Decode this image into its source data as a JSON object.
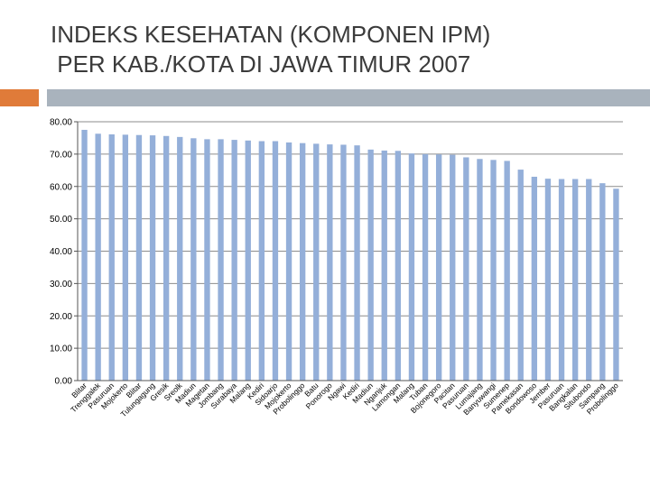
{
  "title": "INDEKS KESEHATAN (KOMPONEN IPM)\n PER KAB./KOTA DI JAWA TIMUR 2007",
  "colors": {
    "accent": "#e07b39",
    "banner": "#a9b3bd",
    "bar": "#94afd9",
    "grid": "#8c8c8c"
  },
  "chart_data": {
    "type": "bar",
    "title": "INDEKS KESEHATAN (KOMPONEN IPM) PER KAB./KOTA DI JAWA TIMUR 2007",
    "xlabel": "",
    "ylabel": "",
    "ylim": [
      0,
      80
    ],
    "yticks": [
      "0.00",
      "10.00",
      "20.00",
      "30.00",
      "40.00",
      "50.00",
      "60.00",
      "70.00",
      "80.00"
    ],
    "grid": true,
    "categories": [
      "Blitar",
      "Trenggalek",
      "Pasuruan",
      "Mojokerto",
      "Blitar",
      "Tulungagung",
      "Gresik",
      "Sreolk",
      "Madiun",
      "Magetan",
      "Jombang",
      "Surabaya",
      "Malang",
      "Kediri",
      "Sidoarjo",
      "Mojokerto",
      "Probolinggo",
      "Batu",
      "Ponorogo",
      "Ngawi",
      "Kediri",
      "Madiun",
      "Nganjuk",
      "Lamongan",
      "Malang",
      "Tuban",
      "Bojonegoro",
      "Pacitan",
      "Pasuruan",
      "Lumajang",
      "Banyuwangi",
      "Sumenep",
      "Pamekasan",
      "Bondowoso",
      "Jember",
      "Pasuruan",
      "Bangkalan",
      "Situbondo",
      "Sampang",
      "Probolinggo"
    ],
    "values": [
      77.5,
      76.3,
      76.1,
      76.0,
      75.9,
      75.8,
      75.6,
      75.3,
      74.9,
      74.6,
      74.6,
      74.4,
      74.2,
      74.0,
      74.0,
      73.6,
      73.4,
      73.2,
      73.0,
      72.9,
      72.7,
      71.4,
      71.1,
      71.0,
      70.2,
      70.0,
      69.9,
      69.8,
      69.0,
      68.5,
      68.2,
      67.9,
      65.2,
      63.0,
      62.4,
      62.3,
      62.3,
      62.3,
      61.0,
      59.3
    ]
  }
}
